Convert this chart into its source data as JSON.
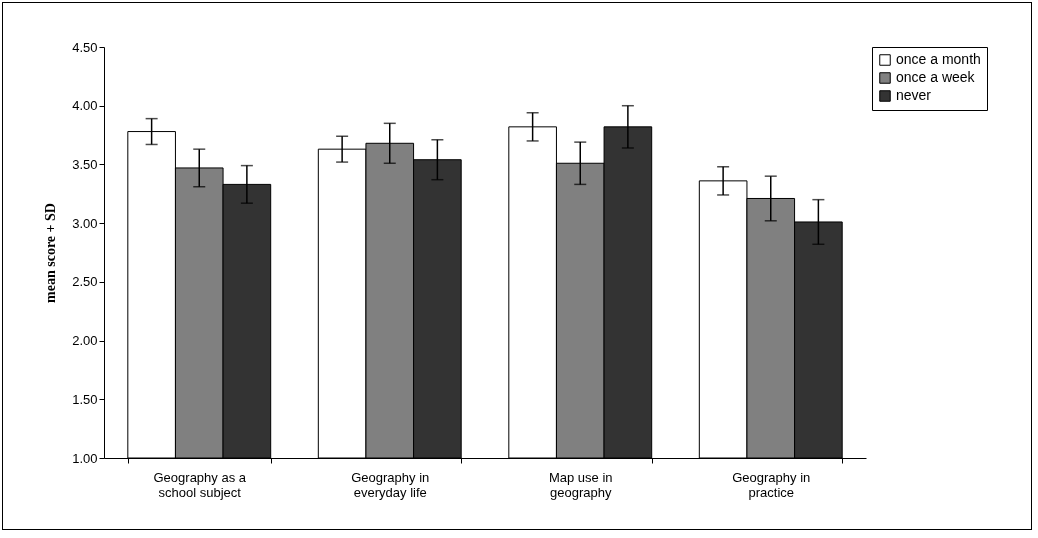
{
  "chart_data": {
    "type": "bar",
    "ylabel": "mean score + SD",
    "categories": [
      "Geography as a school subject",
      "Geography in everyday life",
      "Map use in geography",
      "Geography in practice"
    ],
    "series": [
      {
        "name": "once a month",
        "color": "#ffffff",
        "values": [
          3.78,
          3.63,
          3.82,
          3.36
        ],
        "errors": [
          0.11,
          0.11,
          0.12,
          0.12
        ]
      },
      {
        "name": "once a week",
        "color": "#808080",
        "values": [
          3.47,
          3.68,
          3.51,
          3.21
        ],
        "errors": [
          0.16,
          0.17,
          0.18,
          0.19
        ]
      },
      {
        "name": "never",
        "color": "#333333",
        "values": [
          3.33,
          3.54,
          3.82,
          3.01
        ],
        "errors": [
          0.16,
          0.17,
          0.18,
          0.19
        ]
      }
    ],
    "ylim": [
      1.0,
      4.5
    ],
    "yticks": [
      {
        "value": 1.0,
        "label": "1.00"
      },
      {
        "value": 1.5,
        "label": "1.50"
      },
      {
        "value": 2.0,
        "label": "2.00"
      },
      {
        "value": 2.5,
        "label": "2.50"
      },
      {
        "value": 3.0,
        "label": "3.00"
      },
      {
        "value": 3.5,
        "label": "3.50"
      },
      {
        "value": 4.0,
        "label": "4.00"
      },
      {
        "value": 4.5,
        "label": "4.50"
      }
    ],
    "grid": false,
    "legend": "right"
  }
}
